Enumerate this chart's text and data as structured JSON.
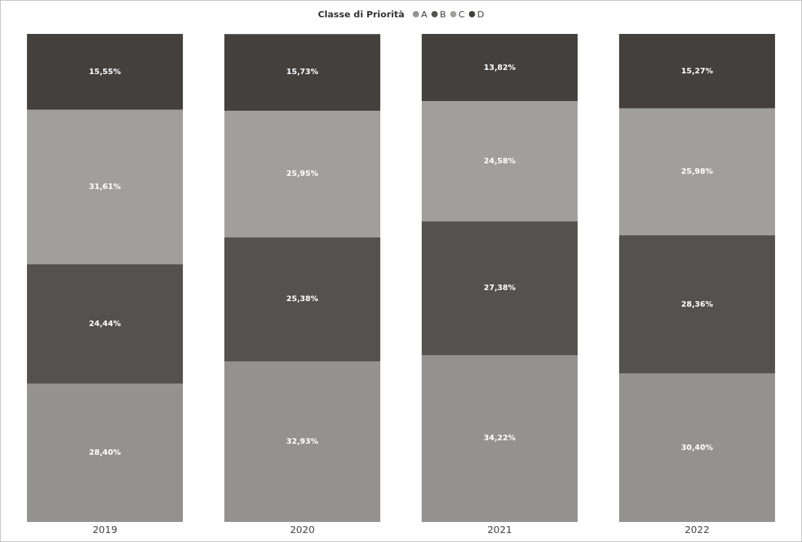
{
  "chart_data": {
    "type": "bar",
    "stacked": true,
    "legend_title": "Classe di Priorità",
    "legend": "top",
    "tick_labels": "x",
    "grid": false,
    "categories": [
      "2019",
      "2020",
      "2021",
      "2022"
    ],
    "series": [
      {
        "name": "A",
        "color": "#939290",
        "values": [
          28.4,
          32.93,
          34.22,
          30.4
        ],
        "value_labels": [
          "28,40%",
          "32,93%",
          "34,22%",
          "30,40%"
        ]
      },
      {
        "name": "B",
        "color": "#545250",
        "values": [
          24.44,
          25.38,
          27.38,
          28.36
        ],
        "value_labels": [
          "24,44%",
          "25,38%",
          "27,38%",
          "28,36%"
        ]
      },
      {
        "name": "C",
        "color": "#a09f9d",
        "values": [
          31.61,
          25.95,
          24.58,
          25.98
        ],
        "value_labels": [
          "31,61%",
          "25,95%",
          "24,58%",
          "25,98%"
        ]
      },
      {
        "name": "D",
        "color": "#43403e",
        "values": [
          15.55,
          15.73,
          13.82,
          15.27
        ],
        "value_labels": [
          "15,55%",
          "15,73%",
          "13,82%",
          "15,27%"
        ]
      }
    ]
  }
}
